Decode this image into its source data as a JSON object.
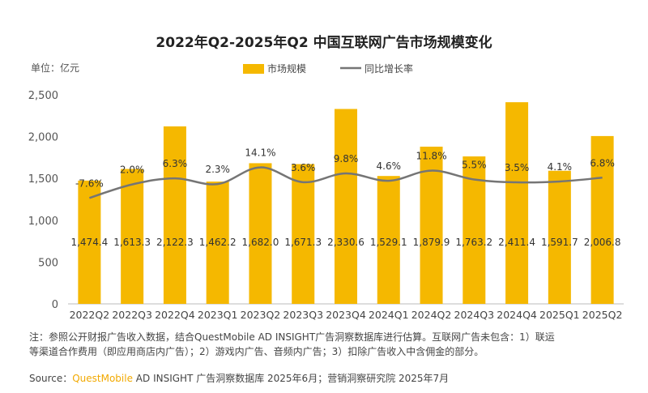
{
  "chart_data": {
    "type": "bar",
    "title": "2022年Q2-2025年Q2 中国互联网广告市场规模变化",
    "unit_label": "单位：亿元",
    "categories": [
      "2022Q2",
      "2022Q3",
      "2022Q4",
      "2023Q1",
      "2023Q2",
      "2023Q3",
      "2023Q4",
      "2024Q1",
      "2024Q2",
      "2024Q3",
      "2024Q4",
      "2025Q1",
      "2025Q2"
    ],
    "series": [
      {
        "name": "市场规模",
        "type": "bar",
        "values": [
          1474.4,
          1613.3,
          2122.3,
          1462.2,
          1682.0,
          1671.3,
          2330.6,
          1529.1,
          1879.9,
          1763.2,
          2411.4,
          1591.7,
          2006.8
        ],
        "labels": [
          "1,474.4",
          "1,613.3",
          "2,122.3",
          "1,462.2",
          "1,682.0",
          "1,671.3",
          "2,330.6",
          "1,529.1",
          "1,879.9",
          "1,763.2",
          "2,411.4",
          "1,591.7",
          "2,006.8"
        ],
        "color": "#f5b800"
      },
      {
        "name": "同比增长率",
        "type": "line",
        "values": [
          -7.6,
          2.0,
          6.3,
          2.3,
          14.1,
          3.6,
          9.8,
          4.6,
          11.8,
          5.5,
          3.5,
          4.1,
          6.8
        ],
        "labels": [
          "-7.6%",
          "2.0%",
          "6.3%",
          "2.3%",
          "14.1%",
          "3.6%",
          "9.8%",
          "4.6%",
          "11.8%",
          "5.5%",
          "3.5%",
          "4.1%",
          "6.8%"
        ],
        "color": "#757575"
      }
    ],
    "ylim": [
      0,
      2500
    ],
    "yticks": [
      "0",
      "500",
      "1,000",
      "1,500",
      "2,000",
      "2,500"
    ],
    "legend_position": "top-center",
    "grid": false
  },
  "footer": {
    "note_line1": "注：参照公开财报广告收入数据，结合QuestMobile AD INSIGHT广告洞察数据库进行估算。互联网广告未包含：1）联运",
    "note_line2": "等渠道合作费用（即应用商店内广告）；2）游戏内广告、音频内广告；3）扣除广告收入中含佣金的部分。",
    "source_prefix": "Source：",
    "source_brand": "QuestMobile",
    "source_rest": " AD INSIGHT 广告洞察数据库 2025年6月；营销洞察研究院 2025年7月"
  }
}
